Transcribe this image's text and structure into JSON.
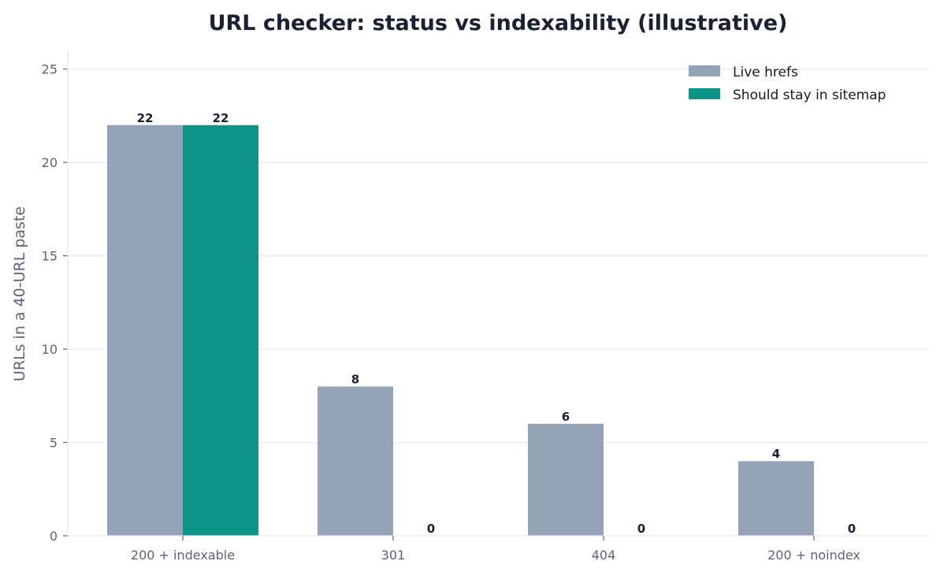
{
  "chart_data": {
    "type": "bar",
    "title": "URL checker: status vs indexability (illustrative)",
    "xlabel": "",
    "ylabel": "URLs in a 40-URL paste",
    "categories": [
      "200 + indexable",
      "301",
      "404",
      "200 + noindex"
    ],
    "series": [
      {
        "name": "Live hrefs",
        "values": [
          22,
          8,
          6,
          4
        ],
        "color": "#94a3b8"
      },
      {
        "name": "Should stay in sitemap",
        "values": [
          22,
          0,
          0,
          0
        ],
        "color": "#0d9488"
      }
    ],
    "ylim": [
      0,
      26
    ],
    "yticks": [
      0,
      5,
      10,
      15,
      20,
      25
    ],
    "grid": "horizontal",
    "legend_position": "top-right"
  }
}
